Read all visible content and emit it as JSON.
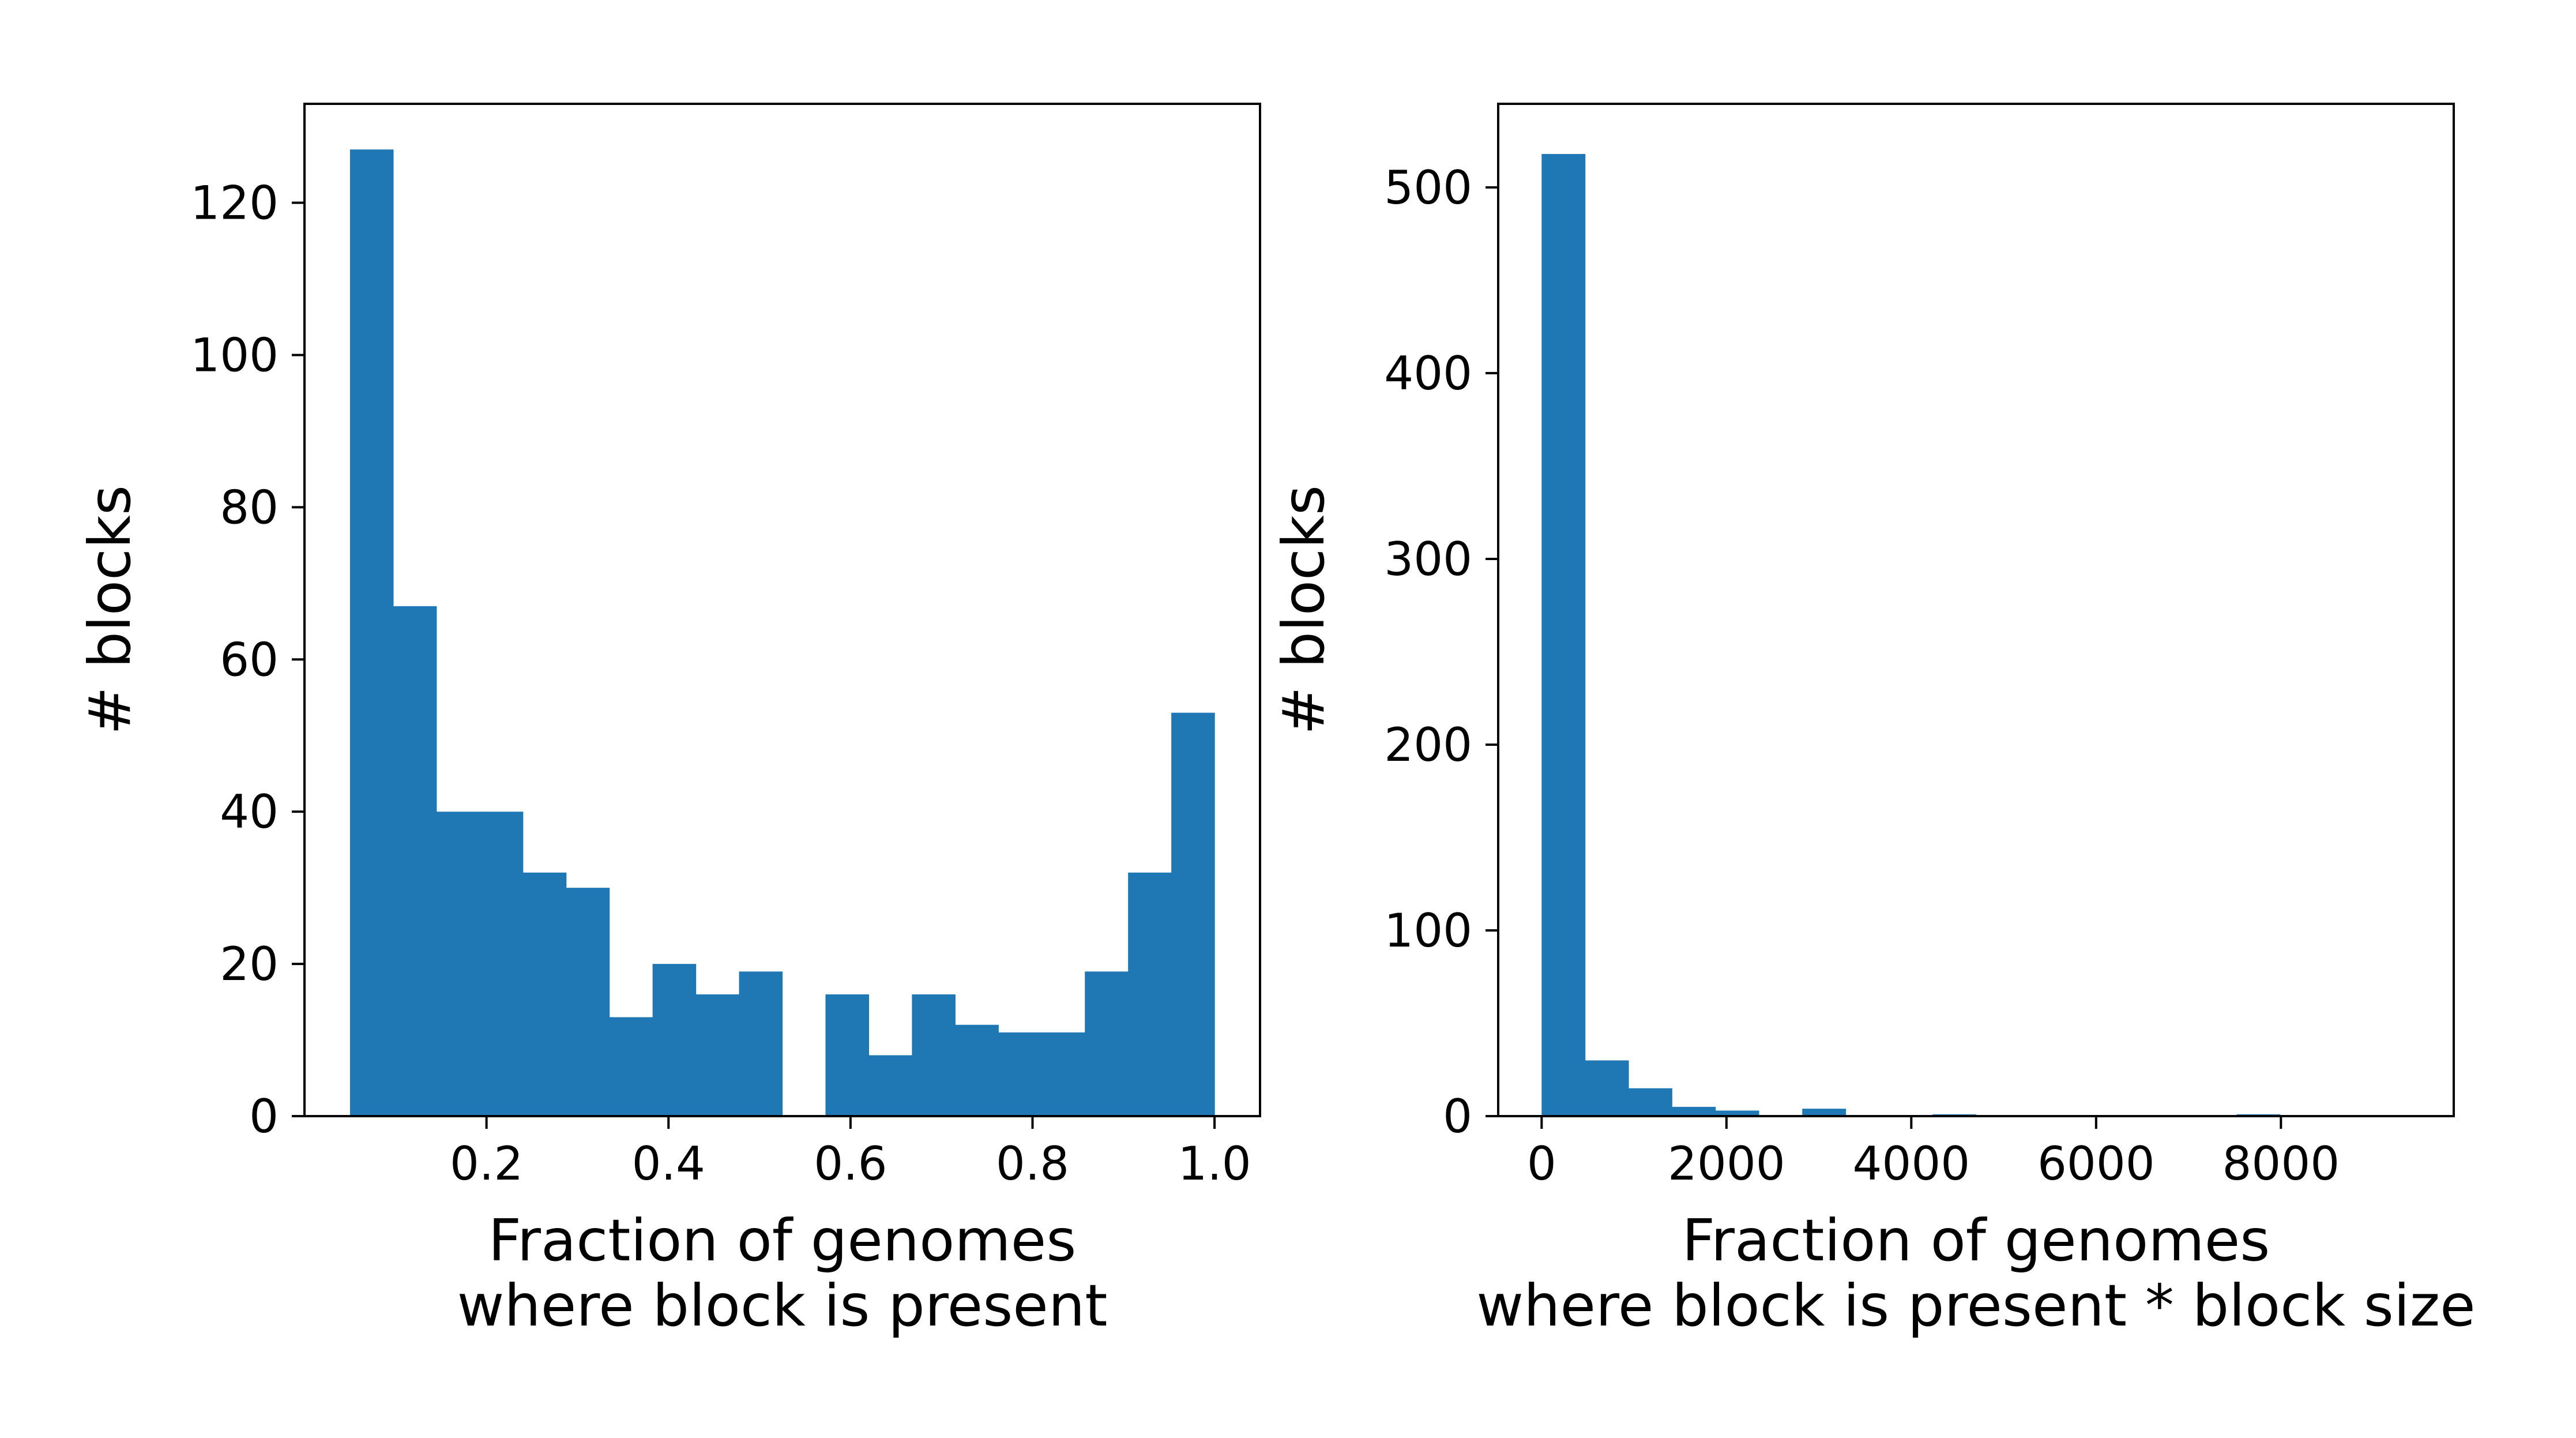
{
  "chart_data": [
    {
      "type": "bar",
      "title": "",
      "xlabel_lines": [
        "Fraction of genomes",
        "where block is present"
      ],
      "ylabel": "# blocks",
      "xlim": [
        0.0,
        1.05
      ],
      "ylim": [
        0,
        133
      ],
      "xticks": [
        0.2,
        0.4,
        0.6,
        0.8,
        1.0
      ],
      "xtick_labels": [
        "0.2",
        "0.4",
        "0.6",
        "0.8",
        "1.0"
      ],
      "yticks": [
        0,
        20,
        40,
        60,
        80,
        100,
        120
      ],
      "ytick_labels": [
        "0",
        "20",
        "40",
        "60",
        "80",
        "100",
        "120"
      ],
      "bin_edges": [
        0.05,
        0.0975,
        0.145,
        0.1925,
        0.24,
        0.2875,
        0.335,
        0.3825,
        0.43,
        0.4775,
        0.525,
        0.5725,
        0.62,
        0.6675,
        0.715,
        0.7625,
        0.81,
        0.8575,
        0.905,
        0.9525,
        1.0
      ],
      "values": [
        127,
        67,
        40,
        40,
        32,
        30,
        13,
        20,
        16,
        19,
        0,
        16,
        8,
        16,
        12,
        11,
        11,
        19,
        32,
        53
      ],
      "color": "#1f77b4",
      "grid": false,
      "legend": "none"
    },
    {
      "type": "bar",
      "title": "",
      "xlabel_lines": [
        "Fraction of genomes",
        "where block is present * block size"
      ],
      "ylabel": "# blocks",
      "xlim": [
        -470,
        9870
      ],
      "ylim": [
        0,
        545
      ],
      "xticks": [
        0,
        2000,
        4000,
        6000,
        8000
      ],
      "xtick_labels": [
        "0",
        "2000",
        "4000",
        "6000",
        "8000"
      ],
      "yticks": [
        0,
        100,
        200,
        300,
        400,
        500
      ],
      "ytick_labels": [
        "0",
        "100",
        "200",
        "300",
        "400",
        "500"
      ],
      "bin_edges": [
        0,
        470,
        940,
        1410,
        1880,
        2350,
        2820,
        3290,
        3760,
        4230,
        4700,
        5170,
        5640,
        6110,
        6580,
        7050,
        7520,
        7990,
        8460,
        8930,
        9400
      ],
      "values": [
        518,
        30,
        15,
        5,
        3,
        0,
        4,
        0,
        0,
        1,
        0,
        0,
        0,
        0,
        0,
        0,
        1,
        0,
        0,
        0
      ],
      "color": "#1f77b4",
      "grid": false,
      "legend": "none"
    }
  ]
}
